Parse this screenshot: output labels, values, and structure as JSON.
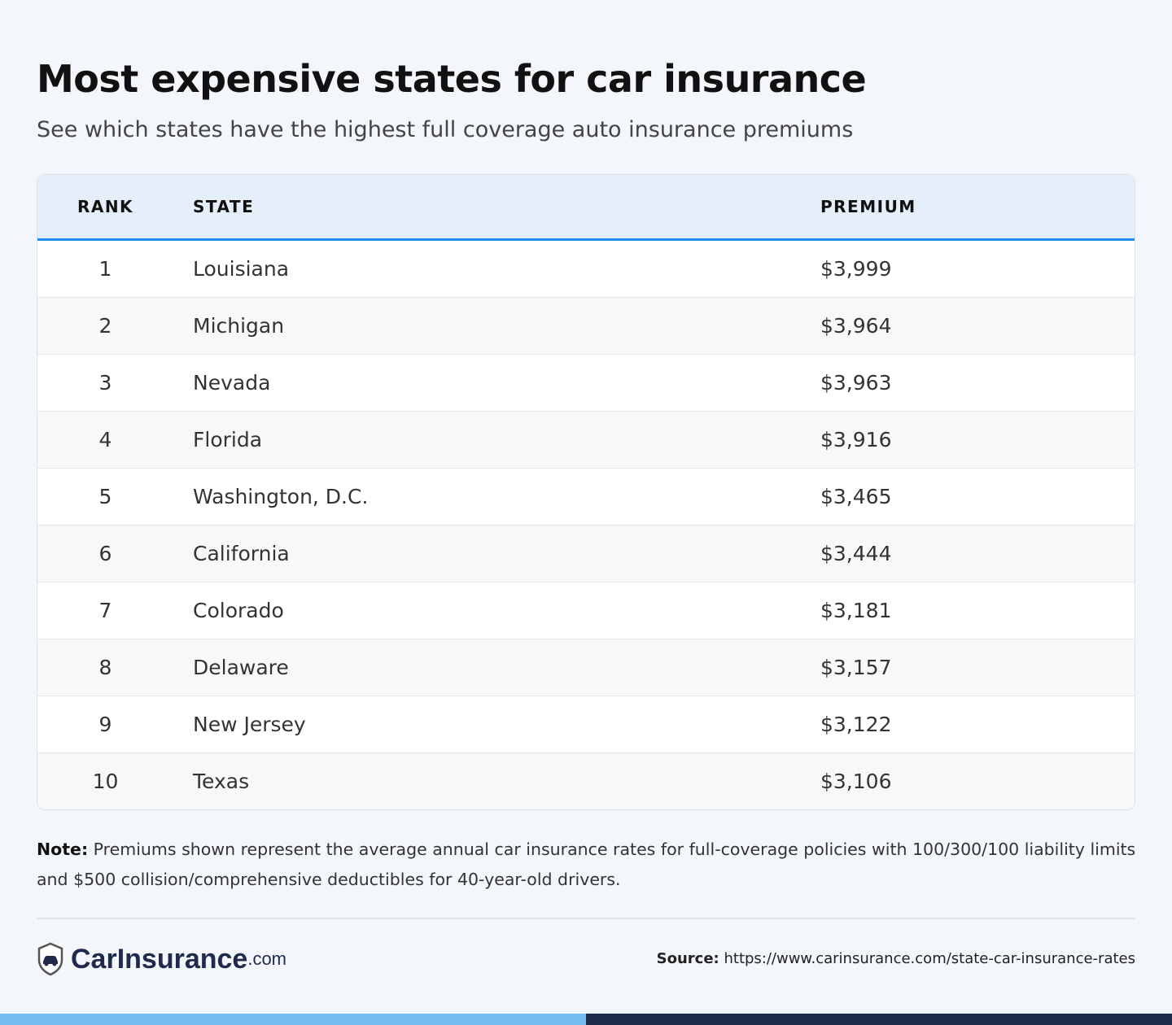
{
  "title": "Most expensive states for car insurance",
  "subtitle": "See which states have the highest full coverage auto insurance premiums",
  "table": {
    "headers": {
      "rank": "RANK",
      "state": "STATE",
      "premium": "PREMIUM"
    },
    "rows": [
      {
        "rank": "1",
        "state": "Louisiana",
        "premium": "$3,999"
      },
      {
        "rank": "2",
        "state": "Michigan",
        "premium": "$3,964"
      },
      {
        "rank": "3",
        "state": "Nevada",
        "premium": "$3,963"
      },
      {
        "rank": "4",
        "state": "Florida",
        "premium": "$3,916"
      },
      {
        "rank": "5",
        "state": "Washington, D.C.",
        "premium": "$3,465"
      },
      {
        "rank": "6",
        "state": "California",
        "premium": "$3,444"
      },
      {
        "rank": "7",
        "state": "Colorado",
        "premium": "$3,181"
      },
      {
        "rank": "8",
        "state": "Delaware",
        "premium": "$3,157"
      },
      {
        "rank": "9",
        "state": "New Jersey",
        "premium": "$3,122"
      },
      {
        "rank": "10",
        "state": "Texas",
        "premium": "$3,106"
      }
    ]
  },
  "note": {
    "label": "Note:",
    "text": " Premiums shown represent the average annual car insurance rates for full-coverage policies with 100/300/100 liability limits and $500 collision/comprehensive deductibles for 40-year-old drivers."
  },
  "footer": {
    "logo_name": "CarInsurance",
    "logo_suffix": ".com",
    "source_label": "Source:",
    "source_url": " https://www.carinsurance.com/state-car-insurance-rates"
  },
  "colors": {
    "accent": "#1e8ef0",
    "header_bg": "#e5eff9",
    "brand_navy": "#1e2a4a",
    "brand_light": "#74bdee"
  }
}
